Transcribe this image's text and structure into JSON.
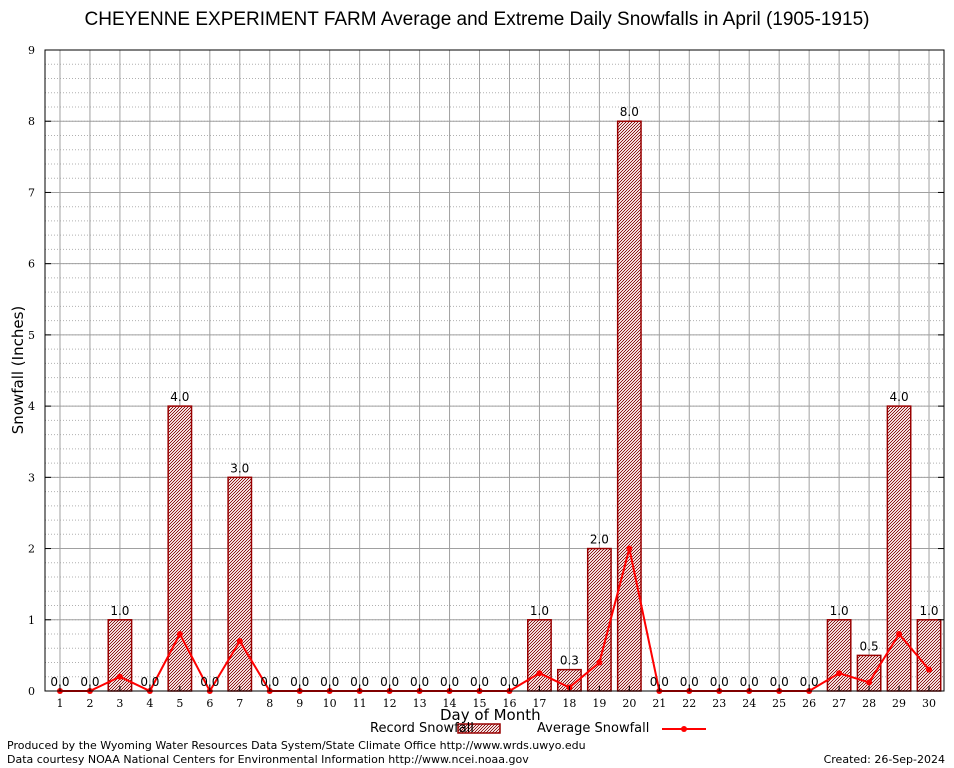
{
  "chart_data": {
    "type": "bar",
    "title": "CHEYENNE EXPERIMENT FARM Average and Extreme Daily Snowfalls in April (1905-1915)",
    "xlabel": "Day of Month",
    "ylabel": "Snowfall (Inches)",
    "ylim": [
      0,
      9
    ],
    "yticks": [
      "0",
      "1",
      "2",
      "3",
      "4",
      "5",
      "6",
      "7",
      "8",
      "9"
    ],
    "categories": [
      "1",
      "2",
      "3",
      "4",
      "5",
      "6",
      "7",
      "8",
      "9",
      "10",
      "11",
      "12",
      "13",
      "14",
      "15",
      "16",
      "17",
      "18",
      "19",
      "20",
      "21",
      "22",
      "23",
      "24",
      "25",
      "26",
      "27",
      "28",
      "29",
      "30"
    ],
    "grid": true,
    "legend_position": "bottom",
    "series": [
      {
        "name": "Record Snowfall",
        "kind": "bar",
        "color": "#cc0000",
        "values": [
          0.0,
          0.0,
          1.0,
          0.0,
          4.0,
          0.0,
          3.0,
          0.0,
          0.0,
          0.0,
          0.0,
          0.0,
          0.0,
          0.0,
          0.0,
          0.0,
          1.0,
          0.3,
          2.0,
          8.0,
          0.0,
          0.0,
          0.0,
          0.0,
          0.0,
          0.0,
          1.0,
          0.5,
          4.0,
          1.0
        ],
        "labels": [
          "0.0",
          "0.0",
          "1.0",
          "0.0",
          "4.0",
          "0.0",
          "3.0",
          "0.0",
          "0.0",
          "0.0",
          "0.0",
          "0.0",
          "0.0",
          "0.0",
          "0.0",
          "0.0",
          "1.0",
          "0.3",
          "2.0",
          "8.0",
          "0.0",
          "0.0",
          "0.0",
          "0.0",
          "0.0",
          "0.0",
          "1.0",
          "0.5",
          "4.0",
          "1.0"
        ]
      },
      {
        "name": "Average Snowfall",
        "kind": "line",
        "color": "#ff0000",
        "values": [
          0.0,
          0.0,
          0.2,
          0.0,
          0.8,
          0.0,
          0.7,
          0.0,
          0.0,
          0.0,
          0.0,
          0.0,
          0.0,
          0.0,
          0.0,
          0.0,
          0.25,
          0.05,
          0.4,
          2.0,
          0.0,
          0.0,
          0.0,
          0.0,
          0.0,
          0.0,
          0.25,
          0.12,
          0.8,
          0.3
        ]
      }
    ]
  },
  "footer": {
    "line1": "Produced by the Wyoming Water Resources Data System/State Climate Office http://www.wrds.uwyo.edu",
    "line2": "Data courtesy NOAA National Centers for Environmental Information http://www.ncei.noaa.gov",
    "created": "Created:  26-Sep-2024"
  }
}
